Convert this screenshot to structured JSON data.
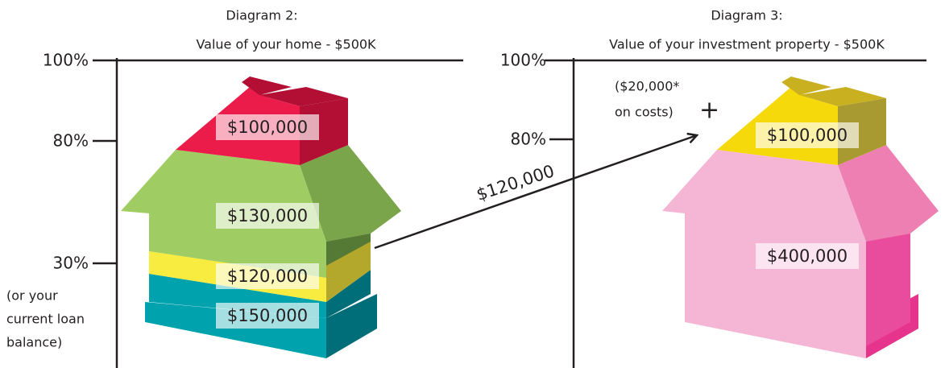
{
  "diagrams": [
    {
      "title": "Diagram 2:",
      "subtitle": "Value of your home - $500K",
      "axis_labels": [
        "100%",
        "80%",
        "30%"
      ],
      "axis_note": [
        "(or your",
        "current loan",
        "balance)"
      ],
      "segments": [
        "$100,000",
        "$130,000",
        "$120,000",
        "$150,000"
      ]
    },
    {
      "title": "Diagram 3:",
      "subtitle": "Value of your investment property - $500K",
      "axis_labels": [
        "100%",
        "80%"
      ],
      "note": [
        "($20,000*",
        "on costs)"
      ],
      "plus": "+",
      "segments": [
        "$100,000",
        "$400,000"
      ]
    }
  ],
  "arrow_label": "$120,000"
}
